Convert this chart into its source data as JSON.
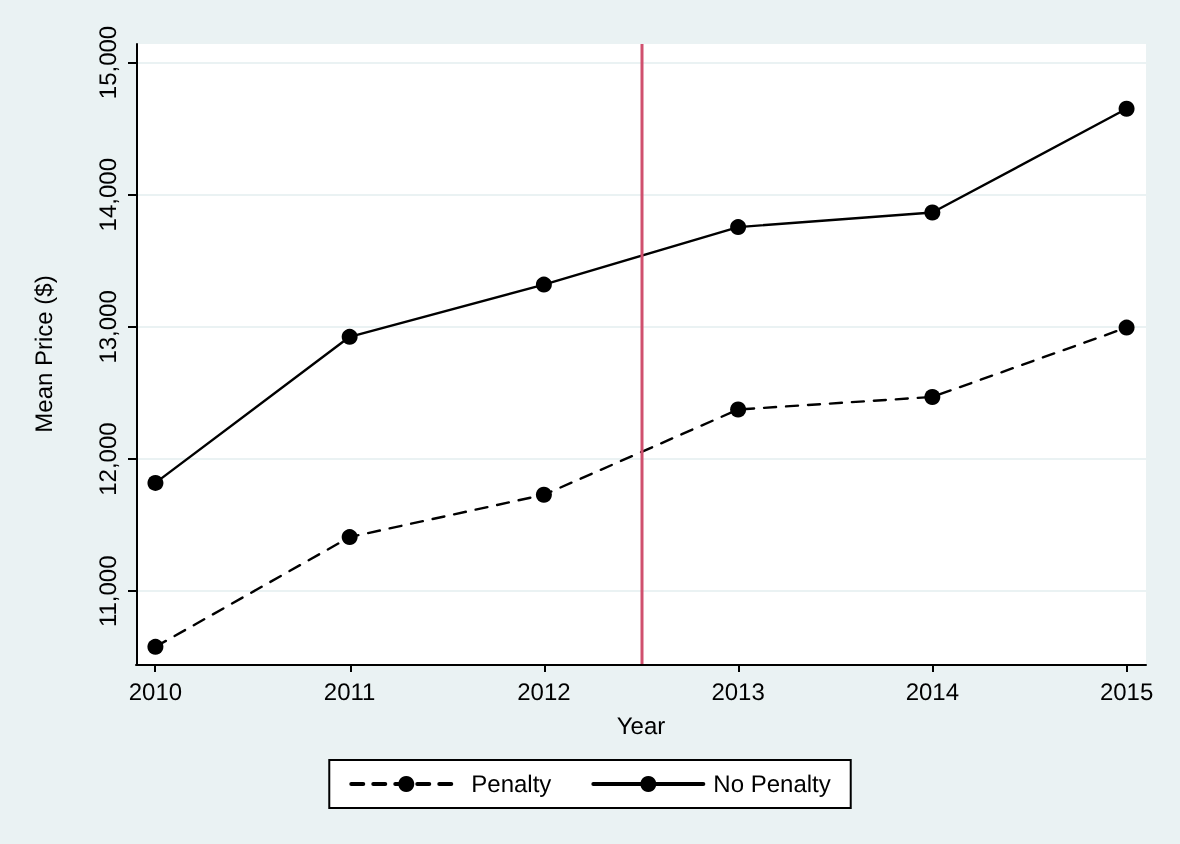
{
  "chart_data": {
    "type": "line",
    "xlabel": "Year",
    "ylabel": "Mean Price ($)",
    "x": [
      2010,
      2011,
      2012,
      2013,
      2014,
      2015
    ],
    "series": [
      {
        "name": "Penalty",
        "color": "#000000",
        "line_style": "dashed",
        "values": [
          10580,
          11410,
          11730,
          12375,
          12470,
          12995
        ]
      },
      {
        "name": "No Penalty",
        "color": "#000000",
        "line_style": "solid",
        "values": [
          11820,
          12925,
          13320,
          13755,
          13865,
          14650
        ]
      }
    ],
    "xlim": [
      2009.9,
      2015.1
    ],
    "xticks": [
      2010,
      2011,
      2012,
      2013,
      2014,
      2015
    ],
    "ylim": [
      10450,
      15140
    ],
    "yticks": [
      {
        "value": 11000,
        "label": "11,000"
      },
      {
        "value": 12000,
        "label": "12,000"
      },
      {
        "value": 13000,
        "label": "13,000"
      },
      {
        "value": 14000,
        "label": "14,000"
      },
      {
        "value": 15000,
        "label": "15,000"
      }
    ],
    "ref_lines": [
      {
        "axis": "x",
        "value": 2012.5,
        "color": "#d0506e"
      }
    ],
    "grid": "y",
    "legend": "bottom",
    "marker": "circle"
  }
}
